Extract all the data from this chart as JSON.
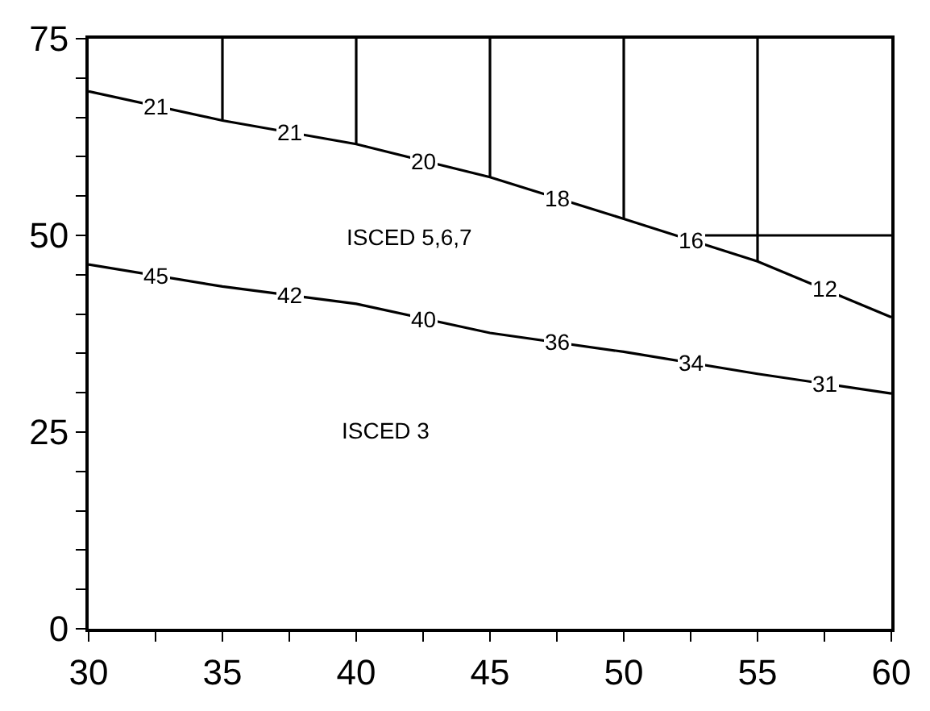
{
  "chart_data": {
    "type": "line",
    "xlim": [
      30,
      60
    ],
    "ylim": [
      0,
      75
    ],
    "xticks": [
      30,
      {
        "value": 32.5,
        "label": null
      },
      35,
      {
        "value": 37.5,
        "label": null
      },
      40,
      {
        "value": 42.5,
        "label": null
      },
      45,
      {
        "value": 47.5,
        "label": null
      },
      50,
      {
        "value": 52.5,
        "label": null
      },
      55,
      {
        "value": 57.5,
        "label": null
      },
      60
    ],
    "yticks": [
      0,
      {
        "value": 5,
        "label": null
      },
      {
        "value": 10,
        "label": null
      },
      {
        "value": 15,
        "label": null
      },
      {
        "value": 20,
        "label": null
      },
      25,
      {
        "value": 30,
        "label": null
      },
      {
        "value": 35,
        "label": null
      },
      {
        "value": 40,
        "label": null
      },
      {
        "value": 45,
        "label": null
      },
      50,
      {
        "value": 55,
        "label": null
      },
      {
        "value": 60,
        "label": null
      },
      {
        "value": 65,
        "label": null
      },
      {
        "value": 70,
        "label": null
      },
      75
    ],
    "marker": "none",
    "line_style": "solid",
    "series": [
      {
        "color": "#000000",
        "x": [
          30,
          35,
          40,
          45,
          50,
          55,
          60
        ],
        "values": [
          68.3,
          64.6,
          61.6,
          57.4,
          52.1,
          46.7,
          39.6
        ]
      },
      {
        "color": "#000000",
        "x": [
          30,
          35,
          40,
          45,
          50,
          55,
          60
        ],
        "values": [
          46.3,
          43.5,
          41.3,
          37.6,
          35.2,
          32.4,
          29.9
        ]
      },
      {
        "color": "#000000",
        "x": [
          35,
          35
        ],
        "values": [
          64.6,
          75
        ]
      },
      {
        "color": "#000000",
        "x": [
          40,
          40
        ],
        "values": [
          61.6,
          75
        ]
      },
      {
        "color": "#000000",
        "x": [
          45,
          45
        ],
        "values": [
          57.4,
          75
        ]
      },
      {
        "color": "#000000",
        "x": [
          50,
          50
        ],
        "values": [
          52.1,
          75
        ]
      },
      {
        "color": "#000000",
        "x": [
          55,
          55
        ],
        "values": [
          46.7,
          75
        ]
      },
      {
        "color": "#000000",
        "x": [
          53,
          60
        ],
        "values": [
          50,
          50
        ]
      }
    ],
    "annotations": [
      {
        "text": "21",
        "x": 32.5,
        "y": 66.4
      },
      {
        "text": "21",
        "x": 37.5,
        "y": 63.1
      },
      {
        "text": "20",
        "x": 42.5,
        "y": 59.5
      },
      {
        "text": "18",
        "x": 47.5,
        "y": 54.8
      },
      {
        "text": "16",
        "x": 52.5,
        "y": 49.4
      },
      {
        "text": "12",
        "x": 57.5,
        "y": 43.2
      },
      {
        "text": "45",
        "x": 32.5,
        "y": 44.9
      },
      {
        "text": "42",
        "x": 37.5,
        "y": 42.4
      },
      {
        "text": "40",
        "x": 42.5,
        "y": 39.4
      },
      {
        "text": "36",
        "x": 47.5,
        "y": 36.4
      },
      {
        "text": "34",
        "x": 52.5,
        "y": 33.8
      },
      {
        "text": "31",
        "x": 57.5,
        "y": 31.1
      },
      "ISCED 5,6,7",
      "ISCED 3"
    ]
  }
}
